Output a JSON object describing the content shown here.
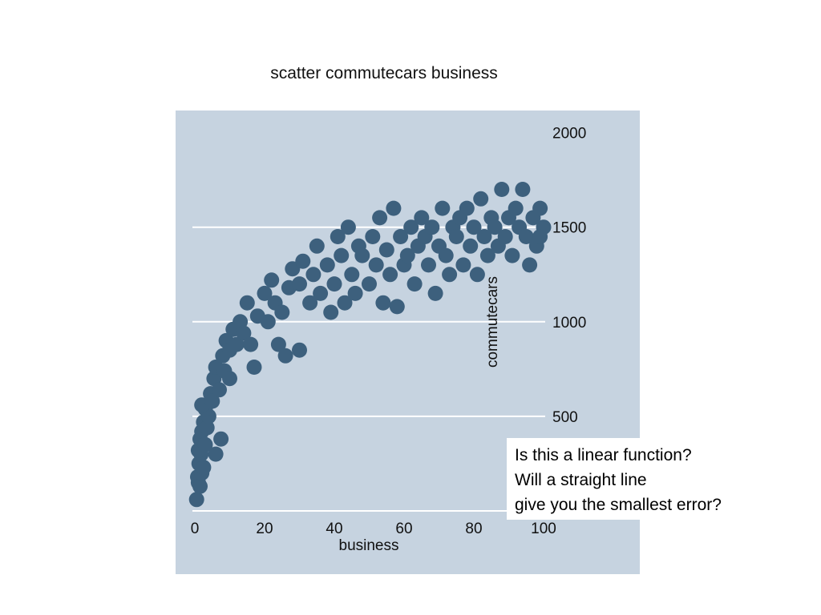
{
  "slide": {
    "title": "scatter commutecars business",
    "callout_lines": [
      "Is this a linear function?",
      "Will a straight line",
      "give you the smallest error?"
    ]
  },
  "chart_data": {
    "type": "scatter",
    "xlabel": "business",
    "ylabel": "commutecars",
    "xlim": [
      0,
      100
    ],
    "ylim": [
      0,
      2000
    ],
    "xticks": [
      0,
      20,
      40,
      60,
      80,
      100
    ],
    "yticks": [
      500,
      1000,
      1500,
      2000
    ],
    "grid": "horizontal",
    "y_axis_side": "right",
    "colors": {
      "background": "#c6d3e0",
      "marker": "#3d607d",
      "gridline": "#ffffff",
      "text": "#111111"
    },
    "series": [
      {
        "points": [
          [
            0.5,
            60
          ],
          [
            1,
            150
          ],
          [
            0.8,
            180
          ],
          [
            1.5,
            130
          ],
          [
            2,
            200
          ],
          [
            1.2,
            250
          ],
          [
            2.5,
            230
          ],
          [
            1.8,
            300
          ],
          [
            1,
            320
          ],
          [
            1.5,
            380
          ],
          [
            2,
            420
          ],
          [
            3,
            350
          ],
          [
            2.5,
            470
          ],
          [
            3.5,
            440
          ],
          [
            4,
            500
          ],
          [
            3,
            540
          ],
          [
            2,
            560
          ],
          [
            4.5,
            620
          ],
          [
            5,
            580
          ],
          [
            6,
            300
          ],
          [
            7.5,
            380
          ],
          [
            5.5,
            700
          ],
          [
            6,
            760
          ],
          [
            7,
            640
          ],
          [
            8,
            820
          ],
          [
            8.5,
            740
          ],
          [
            9,
            900
          ],
          [
            10,
            850
          ],
          [
            11,
            960
          ],
          [
            10,
            700
          ],
          [
            12,
            880
          ],
          [
            13,
            1000
          ],
          [
            14,
            940
          ],
          [
            15,
            1100
          ],
          [
            16,
            880
          ],
          [
            17,
            760
          ],
          [
            18,
            1030
          ],
          [
            20,
            1150
          ],
          [
            21,
            1000
          ],
          [
            22,
            1220
          ],
          [
            23,
            1100
          ],
          [
            24,
            880
          ],
          [
            25,
            1050
          ],
          [
            26,
            820
          ],
          [
            27,
            1180
          ],
          [
            28,
            1280
          ],
          [
            30,
            1200
          ],
          [
            30,
            850
          ],
          [
            31,
            1320
          ],
          [
            33,
            1100
          ],
          [
            34,
            1250
          ],
          [
            35,
            1400
          ],
          [
            36,
            1150
          ],
          [
            38,
            1300
          ],
          [
            39,
            1050
          ],
          [
            40,
            1200
          ],
          [
            41,
            1450
          ],
          [
            42,
            1350
          ],
          [
            43,
            1100
          ],
          [
            44,
            1500
          ],
          [
            45,
            1250
          ],
          [
            46,
            1150
          ],
          [
            47,
            1400
          ],
          [
            48,
            1350
          ],
          [
            50,
            1200
          ],
          [
            51,
            1450
          ],
          [
            52,
            1300
          ],
          [
            53,
            1550
          ],
          [
            54,
            1100
          ],
          [
            55,
            1380
          ],
          [
            56,
            1250
          ],
          [
            57,
            1600
          ],
          [
            58,
            1080
          ],
          [
            59,
            1450
          ],
          [
            60,
            1300
          ],
          [
            61,
            1350
          ],
          [
            62,
            1500
          ],
          [
            63,
            1200
          ],
          [
            64,
            1400
          ],
          [
            65,
            1550
          ],
          [
            66,
            1450
          ],
          [
            67,
            1300
          ],
          [
            68,
            1500
          ],
          [
            69,
            1150
          ],
          [
            70,
            1400
          ],
          [
            71,
            1600
          ],
          [
            72,
            1350
          ],
          [
            73,
            1250
          ],
          [
            74,
            1500
          ],
          [
            75,
            1450
          ],
          [
            76,
            1550
          ],
          [
            77,
            1300
          ],
          [
            78,
            1600
          ],
          [
            79,
            1400
          ],
          [
            80,
            1500
          ],
          [
            81,
            1250
          ],
          [
            82,
            1650
          ],
          [
            83,
            1450
          ],
          [
            84,
            1350
          ],
          [
            85,
            1550
          ],
          [
            86,
            1500
          ],
          [
            87,
            1400
          ],
          [
            88,
            1700
          ],
          [
            89,
            1450
          ],
          [
            90,
            1550
          ],
          [
            91,
            1350
          ],
          [
            92,
            1600
          ],
          [
            93,
            1500
          ],
          [
            94,
            1700
          ],
          [
            95,
            1450
          ],
          [
            96,
            1300
          ],
          [
            97,
            1550
          ],
          [
            98,
            1400
          ],
          [
            99,
            1600
          ],
          [
            100,
            1500
          ],
          [
            99,
            1450
          ]
        ]
      }
    ]
  }
}
